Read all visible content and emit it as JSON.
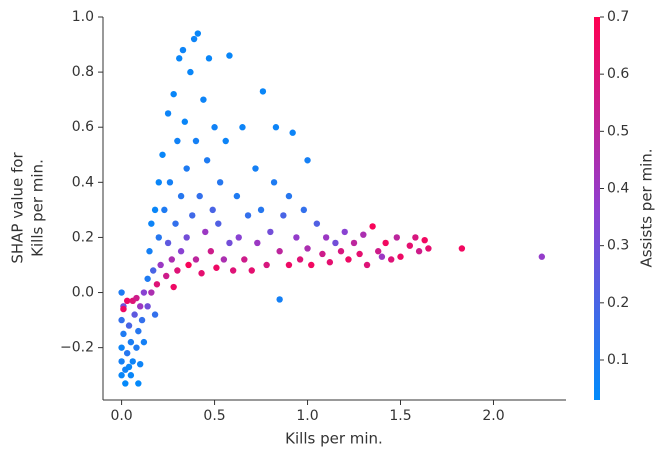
{
  "chart_data": {
    "type": "scatter",
    "xlabel": "Kills per min.",
    "ylabel": [
      "SHAP value for",
      "Kills per min."
    ],
    "colorbar_label": "Assists per min.",
    "xlim": [
      -0.1,
      2.39
    ],
    "ylim": [
      -0.39,
      1.0
    ],
    "xticks": [
      {
        "value": 0,
        "label": "0.0"
      },
      {
        "value": 0.5,
        "label": "0.5"
      },
      {
        "value": 1,
        "label": "1.0"
      },
      {
        "value": 1.5,
        "label": "1.5"
      },
      {
        "value": 2,
        "label": "2.0"
      }
    ],
    "yticks": [
      {
        "value": -0.2,
        "label": "−0.2"
      },
      {
        "value": 0,
        "label": "0.0"
      },
      {
        "value": 0.2,
        "label": "0.2"
      },
      {
        "value": 0.4,
        "label": "0.4"
      },
      {
        "value": 0.6,
        "label": "0.6"
      },
      {
        "value": 0.8,
        "label": "0.8"
      },
      {
        "value": 1,
        "label": "1.0"
      }
    ],
    "clim": [
      0.03,
      0.7
    ],
    "cticks": [
      0.1,
      0.2,
      0.3,
      0.4,
      0.5,
      0.6,
      0.7
    ],
    "cmap": [
      "#008bfb",
      "#8f3fd0",
      "#ff0051"
    ],
    "x": [
      0.0,
      0.0,
      0.0,
      0.01,
      0.0,
      0.01,
      0.02,
      0.02,
      0.03,
      0.03,
      0.04,
      0.05,
      0.05,
      0.06,
      0.06,
      0.07,
      0.08,
      0.08,
      0.09,
      0.1,
      0.1,
      0.11,
      0.12,
      0.12,
      0.09,
      0.0,
      0.01,
      0.04,
      0.14,
      0.14,
      0.15,
      0.16,
      0.16,
      0.17,
      0.18,
      0.18,
      0.19,
      0.2,
      0.2,
      0.21,
      0.22,
      0.23,
      0.24,
      0.25,
      0.25,
      0.26,
      0.27,
      0.28,
      0.28,
      0.29,
      0.3,
      0.3,
      0.31,
      0.32,
      0.32,
      0.33,
      0.34,
      0.35,
      0.35,
      0.36,
      0.37,
      0.38,
      0.39,
      0.4,
      0.4,
      0.41,
      0.42,
      0.43,
      0.44,
      0.45,
      0.46,
      0.47,
      0.48,
      0.49,
      0.5,
      0.51,
      0.52,
      0.53,
      0.55,
      0.56,
      0.58,
      0.58,
      0.6,
      0.62,
      0.63,
      0.65,
      0.66,
      0.68,
      0.7,
      0.72,
      0.73,
      0.75,
      0.76,
      0.78,
      0.8,
      0.82,
      0.83,
      0.85,
      0.85,
      0.87,
      0.9,
      0.9,
      0.92,
      0.94,
      0.96,
      0.98,
      1.0,
      1.0,
      1.02,
      1.05,
      1.08,
      1.1,
      1.12,
      1.15,
      1.18,
      1.2,
      1.22,
      1.25,
      1.28,
      1.3,
      1.32,
      1.35,
      1.38,
      1.4,
      1.42,
      1.45,
      1.48,
      1.5,
      1.55,
      1.58,
      1.6,
      1.63,
      1.65,
      1.83,
      2.26
    ],
    "values": [
      -0.3,
      -0.25,
      -0.2,
      -0.15,
      -0.1,
      -0.05,
      -0.33,
      -0.28,
      -0.22,
      -0.03,
      -0.12,
      -0.3,
      -0.18,
      -0.03,
      -0.25,
      -0.08,
      -0.2,
      -0.02,
      -0.14,
      -0.26,
      -0.05,
      -0.1,
      0.0,
      -0.18,
      -0.33,
      0.0,
      -0.06,
      -0.27,
      0.05,
      -0.05,
      0.15,
      0.0,
      0.25,
      0.08,
      0.3,
      -0.08,
      0.03,
      0.2,
      0.4,
      0.1,
      0.5,
      0.3,
      0.06,
      0.65,
      0.18,
      0.4,
      0.12,
      0.72,
      0.02,
      0.25,
      0.55,
      0.08,
      0.85,
      0.35,
      0.15,
      0.88,
      0.62,
      0.2,
      0.45,
      0.1,
      0.8,
      0.28,
      0.92,
      0.12,
      0.55,
      0.94,
      0.35,
      0.07,
      0.7,
      0.22,
      0.48,
      0.85,
      0.15,
      0.3,
      0.6,
      0.09,
      0.25,
      0.4,
      0.12,
      0.55,
      0.86,
      0.18,
      0.08,
      0.35,
      0.2,
      0.6,
      0.12,
      0.28,
      0.08,
      0.45,
      0.18,
      0.3,
      0.73,
      0.1,
      0.22,
      0.4,
      0.6,
      0.15,
      -0.025,
      0.28,
      0.1,
      0.35,
      0.58,
      0.2,
      0.12,
      0.3,
      0.48,
      0.16,
      0.1,
      0.25,
      0.14,
      0.2,
      0.11,
      0.18,
      0.15,
      0.22,
      0.12,
      0.18,
      0.14,
      0.21,
      0.1,
      0.24,
      0.15,
      0.13,
      0.18,
      0.12,
      0.2,
      0.13,
      0.17,
      0.2,
      0.15,
      0.19,
      0.16,
      0.16,
      0.13
    ],
    "color_values": [
      0.05,
      0.08,
      0.06,
      0.1,
      0.15,
      0.3,
      0.04,
      0.07,
      0.12,
      0.65,
      0.2,
      0.05,
      0.09,
      0.6,
      0.06,
      0.25,
      0.1,
      0.55,
      0.12,
      0.06,
      0.4,
      0.15,
      0.35,
      0.08,
      0.04,
      0.1,
      0.65,
      0.05,
      0.1,
      0.3,
      0.08,
      0.45,
      0.06,
      0.2,
      0.05,
      0.15,
      0.6,
      0.12,
      0.05,
      0.4,
      0.05,
      0.1,
      0.55,
      0.06,
      0.25,
      0.08,
      0.45,
      0.05,
      0.65,
      0.15,
      0.07,
      0.6,
      0.05,
      0.12,
      0.35,
      0.06,
      0.05,
      0.3,
      0.1,
      0.68,
      0.05,
      0.18,
      0.06,
      0.5,
      0.08,
      0.05,
      0.15,
      0.62,
      0.06,
      0.4,
      0.1,
      0.05,
      0.55,
      0.2,
      0.07,
      0.65,
      0.22,
      0.12,
      0.45,
      0.06,
      0.05,
      0.3,
      0.6,
      0.1,
      0.35,
      0.06,
      0.55,
      0.15,
      0.62,
      0.08,
      0.4,
      0.12,
      0.05,
      0.58,
      0.3,
      0.1,
      0.06,
      0.5,
      0.08,
      0.2,
      0.65,
      0.12,
      0.06,
      0.38,
      0.6,
      0.15,
      0.08,
      0.45,
      0.66,
      0.22,
      0.55,
      0.4,
      0.62,
      0.3,
      0.58,
      0.35,
      0.65,
      0.5,
      0.62,
      0.45,
      0.6,
      0.68,
      0.55,
      0.4,
      0.66,
      0.6,
      0.5,
      0.65,
      0.62,
      0.58,
      0.55,
      0.66,
      0.62,
      0.66,
      0.38
    ]
  }
}
